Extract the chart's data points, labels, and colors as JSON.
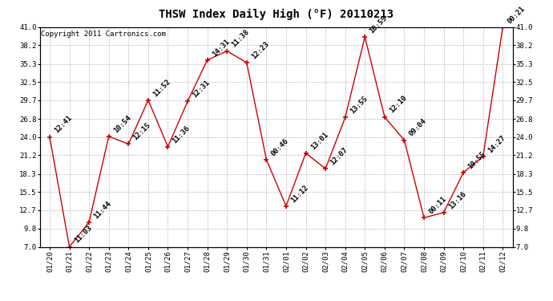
{
  "title": "THSW Index Daily High (°F) 20110213",
  "copyright": "Copyright 2011 Cartronics.com",
  "x_labels": [
    "01/20",
    "01/21",
    "01/22",
    "01/23",
    "01/24",
    "01/25",
    "01/26",
    "01/27",
    "01/28",
    "01/29",
    "01/30",
    "01/31",
    "02/01",
    "02/02",
    "02/03",
    "02/04",
    "02/05",
    "02/06",
    "02/07",
    "02/08",
    "02/09",
    "02/10",
    "02/11",
    "02/12"
  ],
  "y_values": [
    24.0,
    7.0,
    10.8,
    24.1,
    22.9,
    29.7,
    22.5,
    29.5,
    35.9,
    37.3,
    35.5,
    20.5,
    13.3,
    21.5,
    19.1,
    27.0,
    39.5,
    27.1,
    23.5,
    11.5,
    12.3,
    18.5,
    21.0,
    41.0
  ],
  "point_labels": [
    "12:41",
    "11:03",
    "11:44",
    "10:54",
    "12:15",
    "11:52",
    "11:36",
    "12:31",
    "14:31",
    "11:38",
    "12:23",
    "00:46",
    "11:12",
    "13:01",
    "12:07",
    "13:55",
    "10:55",
    "12:10",
    "09:04",
    "00:11",
    "13:16",
    "10:55",
    "14:27",
    "00:21"
  ],
  "ylim_min": 7.0,
  "ylim_max": 41.0,
  "y_ticks": [
    7.0,
    9.8,
    12.7,
    15.5,
    18.3,
    21.2,
    24.0,
    26.8,
    29.7,
    32.5,
    35.3,
    38.2,
    41.0
  ],
  "line_color": "#cc0000",
  "marker_color": "#cc0000",
  "bg_color": "#ffffff",
  "grid_color": "#bbbbbb",
  "title_fontsize": 10,
  "label_fontsize": 6.5,
  "tick_fontsize": 6.5,
  "copyright_fontsize": 6.5
}
